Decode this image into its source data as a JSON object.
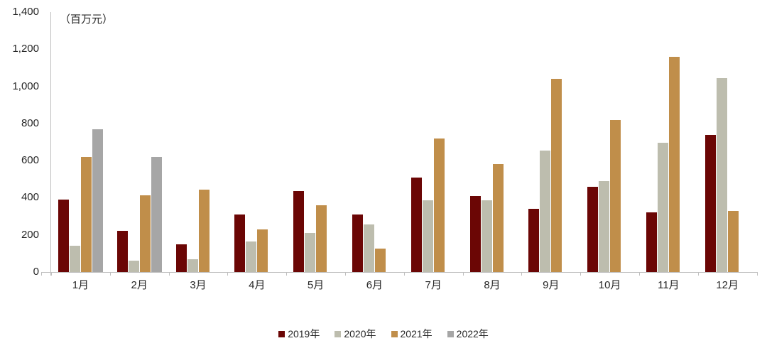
{
  "chart_data": {
    "type": "bar",
    "title": "",
    "unit_label": "（百万元）",
    "xlabel": "",
    "ylabel": "百万元",
    "ylim": [
      0,
      1400
    ],
    "ytick_step": 200,
    "grid": false,
    "legend_position": "bottom",
    "axis_color": "#bfbfbf",
    "text_color": "#262626",
    "categories": [
      "1月",
      "2月",
      "3月",
      "4月",
      "5月",
      "6月",
      "7月",
      "8月",
      "9月",
      "10月",
      "11月",
      "12月"
    ],
    "series": [
      {
        "name": "2019年",
        "color": "#6b0605",
        "values": [
          390,
          220,
          150,
          310,
          435,
          310,
          510,
          410,
          340,
          460,
          320,
          740
        ]
      },
      {
        "name": "2020年",
        "color": "#bdbdae",
        "values": [
          140,
          60,
          70,
          165,
          210,
          255,
          385,
          385,
          655,
          490,
          695,
          1045
        ]
      },
      {
        "name": "2021年",
        "color": "#c08e4a",
        "values": [
          620,
          415,
          445,
          230,
          360,
          125,
          720,
          580,
          1040,
          820,
          1160,
          330
        ]
      },
      {
        "name": "2022年",
        "color": "#a6a6a6",
        "values": [
          770,
          620,
          null,
          null,
          null,
          null,
          null,
          null,
          null,
          null,
          null,
          null
        ]
      }
    ]
  }
}
